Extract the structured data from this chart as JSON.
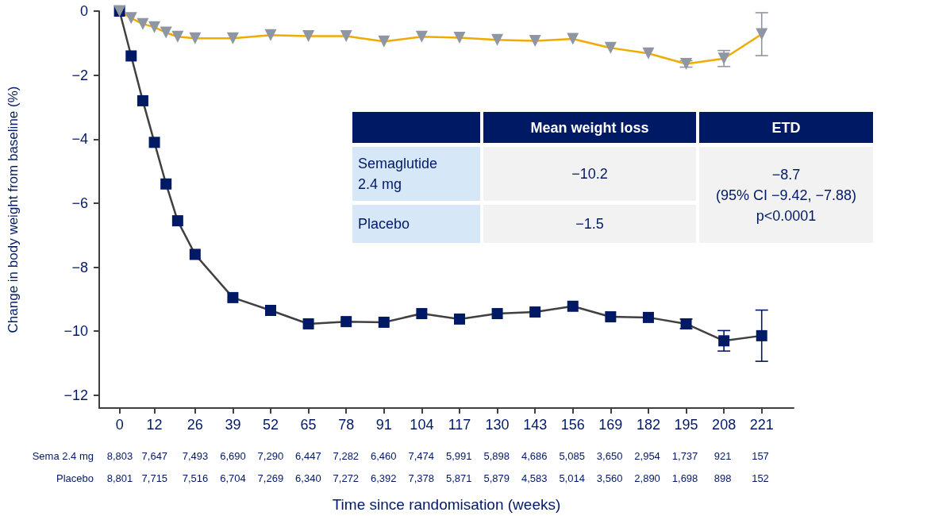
{
  "chart_data": {
    "type": "line",
    "xlabel": "Time since randomisation (weeks)",
    "ylabel": "Change in body weight from baseline (%)",
    "xlim": [
      -7,
      232
    ],
    "xticks": [
      0,
      12,
      26,
      39,
      52,
      65,
      78,
      91,
      104,
      117,
      130,
      143,
      156,
      169,
      182,
      195,
      208,
      221
    ],
    "ylim": [
      -12.4,
      0
    ],
    "yticks": [
      0,
      {
        "value": -2,
        "label": "−2"
      },
      {
        "value": -4,
        "label": "−4"
      },
      {
        "value": -6,
        "label": "−6"
      },
      {
        "value": -8,
        "label": "−8"
      },
      {
        "value": -10,
        "label": "−10"
      },
      {
        "value": -12,
        "label": "−12"
      }
    ],
    "series": [
      {
        "color": "#001965",
        "marker": "square",
        "x": [
          0,
          4,
          8,
          12,
          16,
          20,
          26,
          39,
          52,
          65,
          78,
          91,
          104,
          117,
          130,
          143,
          156,
          169,
          182,
          195,
          208,
          221
        ],
        "values": [
          0,
          -1.4,
          -2.8,
          -4.1,
          -5.4,
          -6.55,
          -7.6,
          -8.95,
          -9.35,
          -9.77,
          -9.7,
          -9.72,
          -9.45,
          -9.62,
          -9.45,
          -9.4,
          -9.22,
          -9.55,
          -9.57,
          -9.77,
          -10.3,
          -10.14
        ],
        "errors": [
          null,
          null,
          null,
          null,
          null,
          null,
          null,
          null,
          null,
          null,
          null,
          null,
          null,
          null,
          null,
          null,
          null,
          null,
          null,
          0.15,
          0.32,
          0.8
        ]
      },
      {
        "color": "#8e95a3",
        "marker": "triangle",
        "x": [
          0,
          4,
          8,
          12,
          16,
          20,
          26,
          39,
          52,
          65,
          78,
          91,
          104,
          117,
          130,
          143,
          156,
          169,
          182,
          195,
          208,
          221
        ],
        "values": [
          0,
          -0.22,
          -0.4,
          -0.5,
          -0.67,
          -0.8,
          -0.85,
          -0.85,
          -0.75,
          -0.78,
          -0.78,
          -0.95,
          -0.8,
          -0.83,
          -0.9,
          -0.93,
          -0.87,
          -1.15,
          -1.32,
          -1.65,
          -1.48,
          -0.72
        ],
        "errors": [
          null,
          null,
          null,
          null,
          null,
          null,
          null,
          null,
          null,
          null,
          null,
          null,
          null,
          null,
          null,
          null,
          null,
          null,
          null,
          0.1,
          0.25,
          0.67
        ]
      }
    ],
    "annotations": [
      "Mean weight loss",
      "ETD",
      "Semaglutide 2.4 mg",
      "−10.2",
      "Placebo",
      "−1.5",
      "−8.7\n(95% CI −9.42, −7.88)\np<0.0001",
      "Sema 2.4 mg",
      "8,803",
      "7,647",
      "7,493",
      "6,690",
      "7,290",
      "6,447",
      "7,282",
      "6,460",
      "7,474",
      "5,991",
      "5,898",
      "4,686",
      "5,085",
      "3,650",
      "2,954",
      "1,737",
      "921",
      "157",
      "Placebo",
      "8,801",
      "7,715",
      "7,516",
      "6,704",
      "7,269",
      "6,340",
      "7,272",
      "6,392",
      "7,378",
      "5,871",
      "5,879",
      "4,583",
      "5,014",
      "3,560",
      "2,890",
      "1,698",
      "898",
      "152"
    ]
  }
}
